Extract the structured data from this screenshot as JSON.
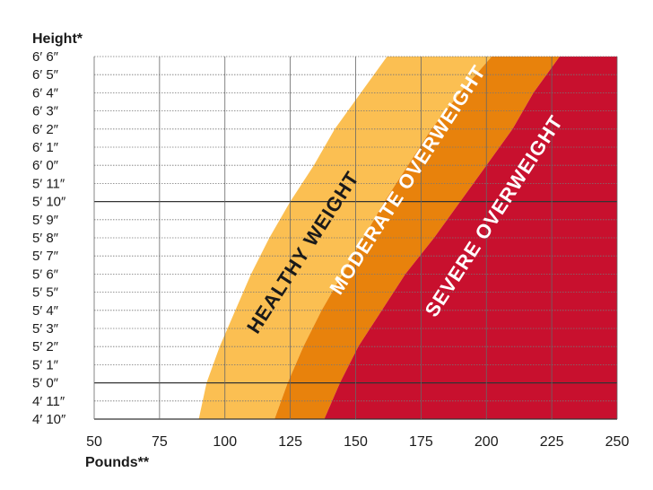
{
  "chart_data": {
    "type": "area",
    "ylabel": "Height*",
    "xlabel": "Pounds**",
    "xlim": [
      50,
      250
    ],
    "x_ticks": [
      "50",
      "75",
      "100",
      "125",
      "150",
      "175",
      "200",
      "225",
      "250"
    ],
    "x_tick_values": [
      50,
      75,
      100,
      125,
      150,
      175,
      200,
      225,
      250
    ],
    "y_ticks": [
      "6′ 6″",
      "6′ 5″",
      "6′ 4″",
      "6′ 3″",
      "6′ 2″",
      "6′ 1″",
      "6′ 0″",
      "5′ 11″",
      "5′ 10″",
      "5′ 9″",
      "5′ 8″",
      "5′ 7″",
      "5′ 6″",
      "5′ 5″",
      "5′ 4″",
      "5′ 3″",
      "5′ 2″",
      "5′ 1″",
      "5′ 0″",
      "4′ 11″",
      "4′ 10″"
    ],
    "y_tick_values_inches": [
      78,
      77,
      76,
      75,
      74,
      73,
      72,
      71,
      70,
      69,
      68,
      67,
      66,
      65,
      64,
      63,
      62,
      61,
      60,
      59,
      58
    ],
    "ylim_inches": [
      58,
      78
    ],
    "grid": true,
    "regions": [
      {
        "name": "HEALTHY WEIGHT",
        "color": "#FBBF52",
        "lower_boundary": [
          [
            90,
            58
          ],
          [
            93,
            60
          ],
          [
            98,
            62
          ],
          [
            104,
            64
          ],
          [
            110,
            66
          ],
          [
            117,
            68
          ],
          [
            125,
            70
          ],
          [
            134,
            72
          ],
          [
            142,
            74
          ],
          [
            152,
            76
          ],
          [
            162,
            78
          ]
        ],
        "upper_boundary": [
          [
            119,
            58
          ],
          [
            124,
            60
          ],
          [
            130,
            62
          ],
          [
            137,
            64
          ],
          [
            145,
            66
          ],
          [
            153,
            68
          ],
          [
            161,
            70
          ],
          [
            170,
            72
          ],
          [
            179,
            74
          ],
          [
            190,
            76
          ],
          [
            202,
            78
          ]
        ]
      },
      {
        "name": "MODERATE OVERWEIGHT",
        "color": "#E8820C",
        "lower_boundary": [
          [
            119,
            58
          ],
          [
            124,
            60
          ],
          [
            130,
            62
          ],
          [
            137,
            64
          ],
          [
            145,
            66
          ],
          [
            153,
            68
          ],
          [
            161,
            70
          ],
          [
            170,
            72
          ],
          [
            179,
            74
          ],
          [
            190,
            76
          ],
          [
            202,
            78
          ]
        ],
        "upper_boundary": [
          [
            138,
            58
          ],
          [
            144,
            60
          ],
          [
            151,
            62
          ],
          [
            160,
            64
          ],
          [
            169,
            66
          ],
          [
            180,
            68
          ],
          [
            190,
            70
          ],
          [
            200,
            72
          ],
          [
            210,
            74
          ],
          [
            218,
            76
          ],
          [
            228,
            78
          ]
        ]
      },
      {
        "name": "SEVERE OVERWEIGHT",
        "color": "#C8102E",
        "lower_boundary": [
          [
            138,
            58
          ],
          [
            144,
            60
          ],
          [
            151,
            62
          ],
          [
            160,
            64
          ],
          [
            169,
            66
          ],
          [
            180,
            68
          ],
          [
            190,
            70
          ],
          [
            200,
            72
          ],
          [
            210,
            74
          ],
          [
            218,
            76
          ],
          [
            228,
            78
          ]
        ],
        "upper_boundary": [
          [
            250,
            58
          ],
          [
            250,
            78
          ]
        ]
      }
    ]
  }
}
